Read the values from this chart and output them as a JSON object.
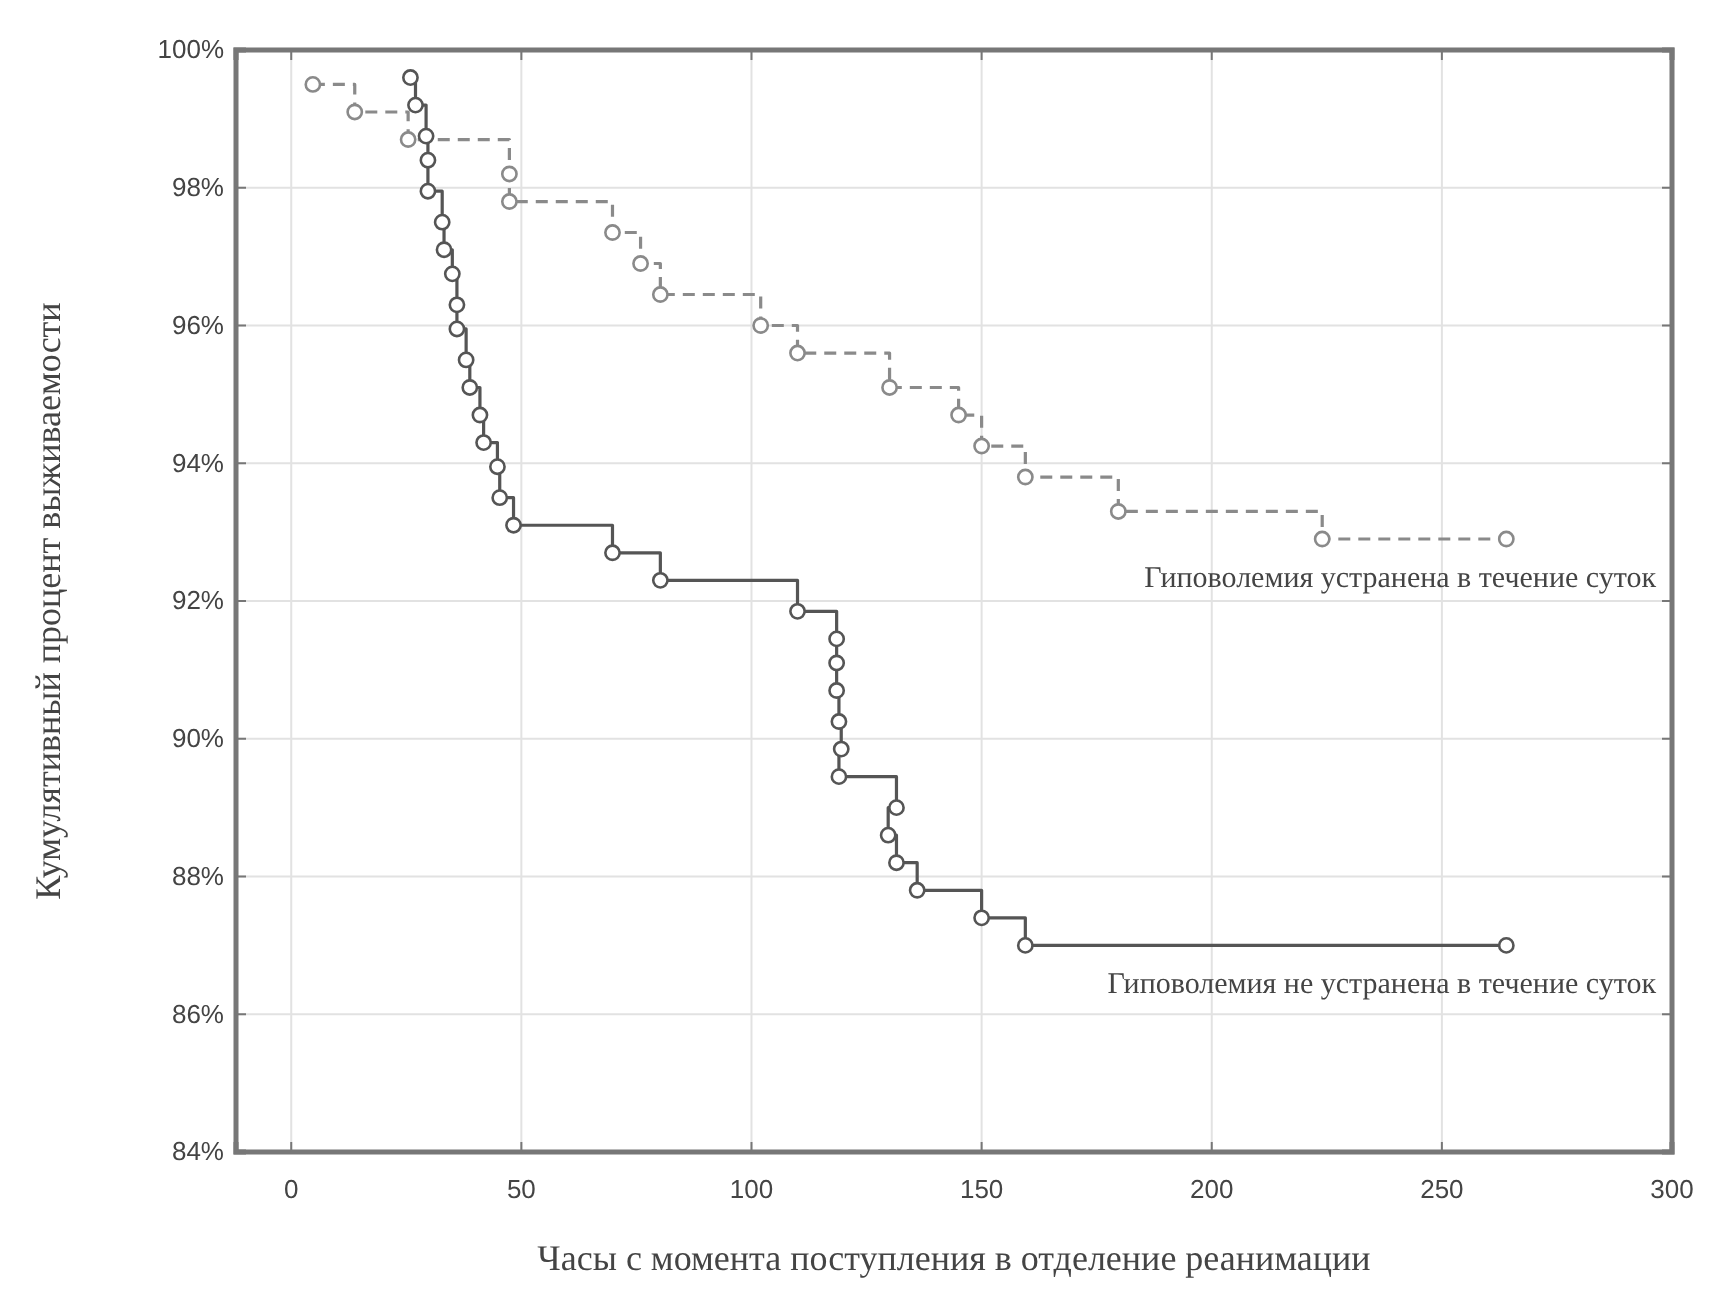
{
  "chart_data": {
    "type": "step",
    "xlabel": "Часы с момента поступления в отделение реанимации",
    "ylabel": "Кумулятивный процент выживаемости",
    "xlim": [
      -12,
      300
    ],
    "xticks": [
      0,
      50,
      100,
      150,
      200,
      250,
      300
    ],
    "ylim": [
      84,
      100
    ],
    "yticks": [
      {
        "value": 84,
        "label": "84%"
      },
      {
        "value": 86,
        "label": "86%"
      },
      {
        "value": 88,
        "label": "88%"
      },
      {
        "value": 90,
        "label": "90%"
      },
      {
        "value": 92,
        "label": "92%"
      },
      {
        "value": 94,
        "label": "94%"
      },
      {
        "value": 96,
        "label": "96%"
      },
      {
        "value": 98,
        "label": "98%"
      },
      {
        "value": 100,
        "label": "100%"
      }
    ],
    "grid": true,
    "marker": "circle",
    "series": [
      {
        "name": "Гиповолемия устранена в течение суток",
        "color": "#8a8a8a",
        "line_style": "dashed",
        "x": [
          4.7,
          13.8,
          25.4,
          47.4,
          47.4,
          69.8,
          75.9,
          80.2,
          102,
          110,
          130,
          145,
          150,
          159.5,
          179.7,
          224,
          264
        ],
        "values": [
          99.5,
          99.1,
          98.7,
          98.2,
          97.8,
          97.35,
          96.9,
          96.45,
          96.0,
          95.6,
          95.1,
          94.7,
          94.25,
          93.8,
          93.3,
          92.9,
          92.9
        ]
      },
      {
        "name": "Гиповолемия не устранена в течение суток",
        "color": "#555555",
        "line_style": "solid",
        "x": [
          25.9,
          27,
          29.3,
          29.7,
          29.7,
          32.8,
          33.2,
          35,
          36,
          36,
          38,
          38.8,
          41,
          41.8,
          44.8,
          45.3,
          48.3,
          69.8,
          80.2,
          110,
          118.5,
          118.5,
          118.5,
          119,
          119.5,
          119,
          131.5,
          129.7,
          131.5,
          136,
          150,
          159.5,
          264
        ],
        "values": [
          99.6,
          99.2,
          98.75,
          98.4,
          97.95,
          97.5,
          97.1,
          96.75,
          96.3,
          95.95,
          95.5,
          95.1,
          94.7,
          94.3,
          93.95,
          93.5,
          93.1,
          92.7,
          92.3,
          91.85,
          91.45,
          91.1,
          90.7,
          90.25,
          89.85,
          89.45,
          89.0,
          88.6,
          88.2,
          87.8,
          87.4,
          87.0,
          87.0
        ]
      }
    ]
  }
}
